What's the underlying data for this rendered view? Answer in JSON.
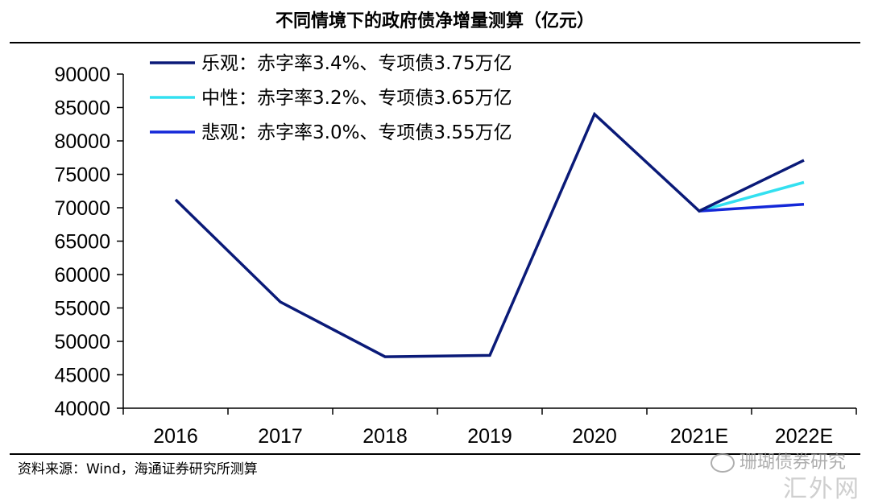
{
  "title": "不同情境下的政府债净增量测算（亿元）",
  "source": "资料来源：Wind，海通证券研究所测算",
  "watermark": "珊瑚债券研究",
  "watermark2": "汇外网",
  "chart_data": {
    "type": "line",
    "categories": [
      "2016",
      "2017",
      "2018",
      "2019",
      "2020",
      "2021E",
      "2022E"
    ],
    "ylim": [
      40000,
      90000
    ],
    "yticks": [
      40000,
      45000,
      50000,
      55000,
      60000,
      65000,
      70000,
      75000,
      80000,
      85000,
      90000
    ],
    "grid": false,
    "legend_position": "top-left",
    "series": [
      {
        "name": "乐观：赤字率3.4%、专项债3.75万亿",
        "color": "#0a1a78",
        "values": [
          71200,
          55900,
          47700,
          47900,
          84000,
          69500,
          77100
        ]
      },
      {
        "name": "中性：赤字率3.2%、专项债3.65万亿",
        "color": "#33e0f0",
        "values": [
          null,
          null,
          null,
          null,
          null,
          69500,
          73800
        ]
      },
      {
        "name": "悲观：赤字率3.0%、专项债3.55万亿",
        "color": "#1428d8",
        "values": [
          null,
          null,
          null,
          null,
          null,
          69500,
          70500
        ]
      }
    ]
  }
}
